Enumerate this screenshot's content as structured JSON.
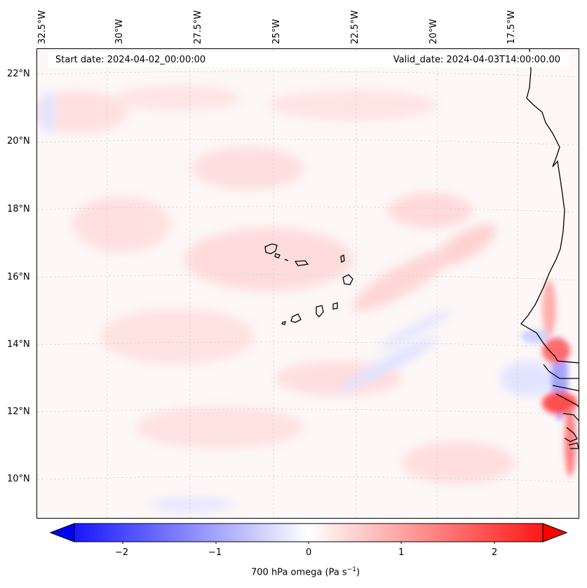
{
  "map": {
    "start_date": "Start date: 2024-04-02_00:00:00",
    "valid_date": "Valid_date: 2024-04-03T14:00:00.00",
    "lon_labels": [
      "32.5°W",
      "30°W",
      "27.5°W",
      "25°W",
      "22.5°W",
      "20°W",
      "17.5°W"
    ],
    "lat_labels": [
      "22°N",
      "20°N",
      "18°N",
      "16°N",
      "14°N",
      "12°N",
      "10°N"
    ]
  },
  "colorbar": {
    "label": "700 hPa omega (Pa s",
    "label_exp": "−1",
    "label_close": ")",
    "ticks": [
      "−2",
      "−1",
      "0",
      "1",
      "2"
    ],
    "min": -2.7,
    "max": 2.7,
    "low_color": "#0000ff",
    "mid_color": "#ffffff",
    "high_color": "#ff0000"
  }
}
